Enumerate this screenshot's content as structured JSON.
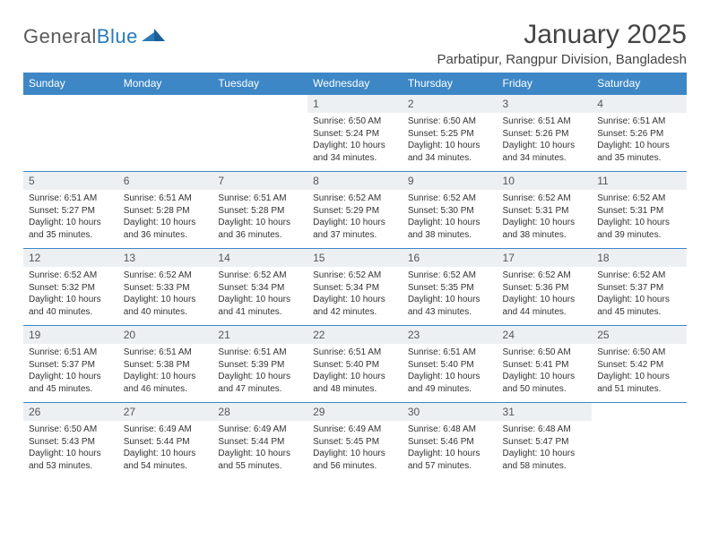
{
  "brand": {
    "part1": "General",
    "part2": "Blue"
  },
  "title": "January 2025",
  "location": "Parbatipur, Rangpur Division, Bangladesh",
  "colors": {
    "header_bg": "#3d87c6",
    "header_text": "#ffffff",
    "daynum_bg": "#edf0f3",
    "rule": "#3d87c6",
    "text": "#333333",
    "logo_gray": "#5a5a5a",
    "logo_blue": "#2a7ab8"
  },
  "weekdays": [
    "Sunday",
    "Monday",
    "Tuesday",
    "Wednesday",
    "Thursday",
    "Friday",
    "Saturday"
  ],
  "weeks": [
    [
      {
        "n": "",
        "sr": "",
        "ss": "",
        "dl": ""
      },
      {
        "n": "",
        "sr": "",
        "ss": "",
        "dl": ""
      },
      {
        "n": "",
        "sr": "",
        "ss": "",
        "dl": ""
      },
      {
        "n": "1",
        "sr": "Sunrise: 6:50 AM",
        "ss": "Sunset: 5:24 PM",
        "dl": "Daylight: 10 hours and 34 minutes."
      },
      {
        "n": "2",
        "sr": "Sunrise: 6:50 AM",
        "ss": "Sunset: 5:25 PM",
        "dl": "Daylight: 10 hours and 34 minutes."
      },
      {
        "n": "3",
        "sr": "Sunrise: 6:51 AM",
        "ss": "Sunset: 5:26 PM",
        "dl": "Daylight: 10 hours and 34 minutes."
      },
      {
        "n": "4",
        "sr": "Sunrise: 6:51 AM",
        "ss": "Sunset: 5:26 PM",
        "dl": "Daylight: 10 hours and 35 minutes."
      }
    ],
    [
      {
        "n": "5",
        "sr": "Sunrise: 6:51 AM",
        "ss": "Sunset: 5:27 PM",
        "dl": "Daylight: 10 hours and 35 minutes."
      },
      {
        "n": "6",
        "sr": "Sunrise: 6:51 AM",
        "ss": "Sunset: 5:28 PM",
        "dl": "Daylight: 10 hours and 36 minutes."
      },
      {
        "n": "7",
        "sr": "Sunrise: 6:51 AM",
        "ss": "Sunset: 5:28 PM",
        "dl": "Daylight: 10 hours and 36 minutes."
      },
      {
        "n": "8",
        "sr": "Sunrise: 6:52 AM",
        "ss": "Sunset: 5:29 PM",
        "dl": "Daylight: 10 hours and 37 minutes."
      },
      {
        "n": "9",
        "sr": "Sunrise: 6:52 AM",
        "ss": "Sunset: 5:30 PM",
        "dl": "Daylight: 10 hours and 38 minutes."
      },
      {
        "n": "10",
        "sr": "Sunrise: 6:52 AM",
        "ss": "Sunset: 5:31 PM",
        "dl": "Daylight: 10 hours and 38 minutes."
      },
      {
        "n": "11",
        "sr": "Sunrise: 6:52 AM",
        "ss": "Sunset: 5:31 PM",
        "dl": "Daylight: 10 hours and 39 minutes."
      }
    ],
    [
      {
        "n": "12",
        "sr": "Sunrise: 6:52 AM",
        "ss": "Sunset: 5:32 PM",
        "dl": "Daylight: 10 hours and 40 minutes."
      },
      {
        "n": "13",
        "sr": "Sunrise: 6:52 AM",
        "ss": "Sunset: 5:33 PM",
        "dl": "Daylight: 10 hours and 40 minutes."
      },
      {
        "n": "14",
        "sr": "Sunrise: 6:52 AM",
        "ss": "Sunset: 5:34 PM",
        "dl": "Daylight: 10 hours and 41 minutes."
      },
      {
        "n": "15",
        "sr": "Sunrise: 6:52 AM",
        "ss": "Sunset: 5:34 PM",
        "dl": "Daylight: 10 hours and 42 minutes."
      },
      {
        "n": "16",
        "sr": "Sunrise: 6:52 AM",
        "ss": "Sunset: 5:35 PM",
        "dl": "Daylight: 10 hours and 43 minutes."
      },
      {
        "n": "17",
        "sr": "Sunrise: 6:52 AM",
        "ss": "Sunset: 5:36 PM",
        "dl": "Daylight: 10 hours and 44 minutes."
      },
      {
        "n": "18",
        "sr": "Sunrise: 6:52 AM",
        "ss": "Sunset: 5:37 PM",
        "dl": "Daylight: 10 hours and 45 minutes."
      }
    ],
    [
      {
        "n": "19",
        "sr": "Sunrise: 6:51 AM",
        "ss": "Sunset: 5:37 PM",
        "dl": "Daylight: 10 hours and 45 minutes."
      },
      {
        "n": "20",
        "sr": "Sunrise: 6:51 AM",
        "ss": "Sunset: 5:38 PM",
        "dl": "Daylight: 10 hours and 46 minutes."
      },
      {
        "n": "21",
        "sr": "Sunrise: 6:51 AM",
        "ss": "Sunset: 5:39 PM",
        "dl": "Daylight: 10 hours and 47 minutes."
      },
      {
        "n": "22",
        "sr": "Sunrise: 6:51 AM",
        "ss": "Sunset: 5:40 PM",
        "dl": "Daylight: 10 hours and 48 minutes."
      },
      {
        "n": "23",
        "sr": "Sunrise: 6:51 AM",
        "ss": "Sunset: 5:40 PM",
        "dl": "Daylight: 10 hours and 49 minutes."
      },
      {
        "n": "24",
        "sr": "Sunrise: 6:50 AM",
        "ss": "Sunset: 5:41 PM",
        "dl": "Daylight: 10 hours and 50 minutes."
      },
      {
        "n": "25",
        "sr": "Sunrise: 6:50 AM",
        "ss": "Sunset: 5:42 PM",
        "dl": "Daylight: 10 hours and 51 minutes."
      }
    ],
    [
      {
        "n": "26",
        "sr": "Sunrise: 6:50 AM",
        "ss": "Sunset: 5:43 PM",
        "dl": "Daylight: 10 hours and 53 minutes."
      },
      {
        "n": "27",
        "sr": "Sunrise: 6:49 AM",
        "ss": "Sunset: 5:44 PM",
        "dl": "Daylight: 10 hours and 54 minutes."
      },
      {
        "n": "28",
        "sr": "Sunrise: 6:49 AM",
        "ss": "Sunset: 5:44 PM",
        "dl": "Daylight: 10 hours and 55 minutes."
      },
      {
        "n": "29",
        "sr": "Sunrise: 6:49 AM",
        "ss": "Sunset: 5:45 PM",
        "dl": "Daylight: 10 hours and 56 minutes."
      },
      {
        "n": "30",
        "sr": "Sunrise: 6:48 AM",
        "ss": "Sunset: 5:46 PM",
        "dl": "Daylight: 10 hours and 57 minutes."
      },
      {
        "n": "31",
        "sr": "Sunrise: 6:48 AM",
        "ss": "Sunset: 5:47 PM",
        "dl": "Daylight: 10 hours and 58 minutes."
      },
      {
        "n": "",
        "sr": "",
        "ss": "",
        "dl": ""
      }
    ]
  ]
}
